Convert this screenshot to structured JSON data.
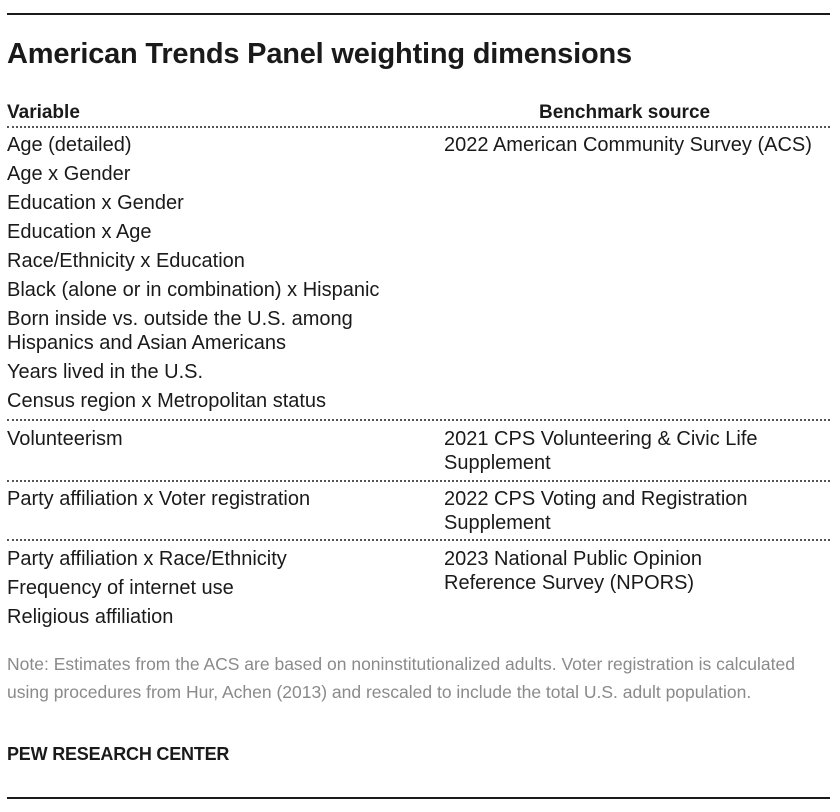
{
  "title": "American Trends Panel weighting dimensions",
  "table": {
    "headers": {
      "variable": "Variable",
      "source": "Benchmark source"
    },
    "groups": [
      {
        "variables": [
          "Age (detailed)",
          "Age x Gender",
          "Education x Gender",
          "Education x Age",
          "Race/Ethnicity x Education",
          "Black (alone or in combination) x Hispanic",
          "Born inside vs. outside the U.S. among Hispanics and Asian Americans",
          "Years lived in the U.S.",
          "Census region x Metropolitan status"
        ],
        "source": "2022 American Community Survey (ACS)"
      },
      {
        "variables": [
          "Volunteerism"
        ],
        "source": "2021 CPS Volunteering & Civic Life Supplement"
      },
      {
        "variables": [
          "Party affiliation x Voter registration"
        ],
        "source": "2022 CPS Voting and Registration Supplement"
      },
      {
        "variables": [
          "Party affiliation x Race/Ethnicity",
          "Frequency of internet use",
          "Religious affiliation"
        ],
        "source": "2023 National Public Opinion Reference Survey (NPORS)"
      }
    ]
  },
  "note": "Note: Estimates from the ACS are based on noninstitutionalized adults. Voter registration is calculated using procedures from Hur, Achen (2013) and rescaled to include the total U.S. adult population.",
  "credit": "PEW RESEARCH CENTER"
}
